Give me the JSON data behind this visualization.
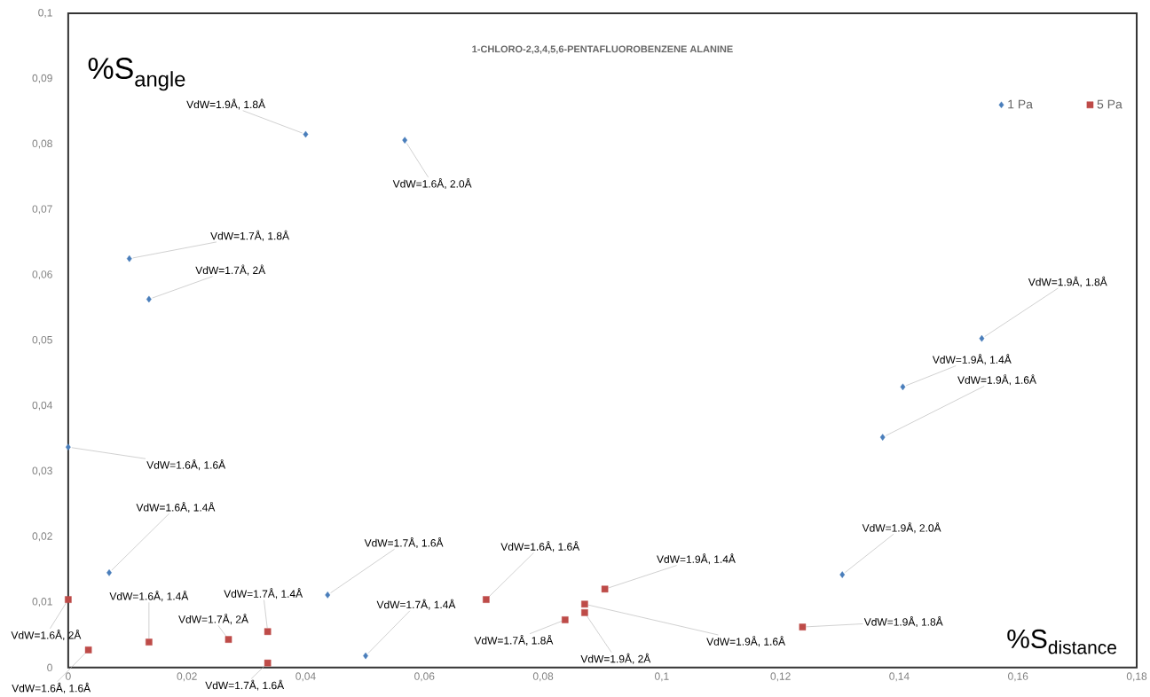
{
  "chart_data": {
    "type": "scatter",
    "title": "1-CHLORO-2,3,4,5,6-PENTAFLUOROBENZENE ALANINE",
    "xlabel": "%S$_{distance}$",
    "ylabel": "%S$_{angle}$",
    "xlim": [
      0,
      0.18
    ],
    "ylim": [
      0,
      0.1
    ],
    "xticks": [
      0,
      {
        "value": 0.02,
        "label": "0,02"
      },
      {
        "value": 0.04,
        "label": "0,04"
      },
      {
        "value": 0.06,
        "label": "0,06"
      },
      {
        "value": 0.08,
        "label": "0,08"
      },
      {
        "value": 0.1,
        "label": "0,1"
      },
      {
        "value": 0.12,
        "label": "0,12"
      },
      {
        "value": 0.14,
        "label": "0,14"
      },
      {
        "value": 0.16,
        "label": "0,16"
      },
      {
        "value": 0.18,
        "label": "0,18"
      }
    ],
    "yticks": [
      0,
      {
        "value": 0.01,
        "label": "0,01"
      },
      {
        "value": 0.02,
        "label": "0,02"
      },
      {
        "value": 0.03,
        "label": "0,03"
      },
      {
        "value": 0.04,
        "label": "0,04"
      },
      {
        "value": 0.05,
        "label": "0,05"
      },
      {
        "value": 0.06,
        "label": "0,06"
      },
      {
        "value": 0.07,
        "label": "0,07"
      },
      {
        "value": 0.08,
        "label": "0,08"
      },
      {
        "value": 0.09,
        "label": "0,09"
      },
      {
        "value": 0.1,
        "label": "0,1"
      }
    ],
    "legend": "top right",
    "series": [
      {
        "name": "1 Pa",
        "color": "#4a7ebb",
        "marker": "diamond",
        "x": [
          0.04,
          0.0567,
          0.0103,
          0.0136,
          0.0,
          0.0069,
          0.0437,
          0.0501,
          0.1304,
          0.1372,
          0.1406,
          0.1539
        ],
        "values": [
          0.0815,
          0.0806,
          0.0625,
          0.0563,
          0.0337,
          0.0145,
          0.0111,
          0.0018,
          0.0142,
          0.0352,
          0.0429,
          0.0503
        ]
      },
      {
        "name": "5 Pa",
        "color": "#be4b48",
        "marker": "square",
        "x": [
          0.0,
          0.0034,
          0.0136,
          0.027,
          0.0336,
          0.0336,
          0.0704,
          0.0837,
          0.087,
          0.087,
          0.0904,
          0.1237
        ],
        "values": [
          0.0104,
          0.0027,
          0.0039,
          0.0043,
          0.0055,
          0.0007,
          0.0104,
          0.0073,
          0.0097,
          0.0084,
          0.012,
          0.0062
        ]
      }
    ],
    "annotations": [
      {
        "text": "VdW=1.9Å, 1.8Å",
        "x": 0.04,
        "y": 0.0815
      },
      {
        "text": "VdW=1.6Å, 2.0Å",
        "x": 0.0567,
        "y": 0.0806
      },
      {
        "text": "VdW=1.7Å, 1.8Å",
        "x": 0.0103,
        "y": 0.0625
      },
      {
        "text": "VdW=1.7Å, 2Å",
        "x": 0.0136,
        "y": 0.0563
      },
      {
        "text": "VdW=1.6Å, 1.6Å",
        "x": 0.0,
        "y": 0.0337
      },
      {
        "text": "VdW=1.6Å, 1.4Å",
        "x": 0.0069,
        "y": 0.0145
      },
      {
        "text": "VdW=1.7Å, 1.6Å",
        "x": 0.0437,
        "y": 0.0111
      },
      {
        "text": "VdW=1.7Å, 1.4Å",
        "x": 0.0501,
        "y": 0.0018
      },
      {
        "text": "VdW=1.9Å, 2.0Å",
        "x": 0.1304,
        "y": 0.0142
      },
      {
        "text": "VdW=1.9Å, 1.6Å",
        "x": 0.1372,
        "y": 0.0352
      },
      {
        "text": "VdW=1.9Å, 1.4Å",
        "x": 0.1406,
        "y": 0.0429
      },
      {
        "text": "VdW=1.9Å, 1.8Å",
        "x": 0.1539,
        "y": 0.0503
      },
      {
        "text": "VdW=1.6Å, 2Å",
        "x": 0.0,
        "y": 0.0104
      },
      {
        "text": "VdW=1.6Å, 1.6Å",
        "x": 0.0034,
        "y": 0.0027
      },
      {
        "text": "VdW=1.6Å, 1.4Å",
        "x": 0.0136,
        "y": 0.0039
      },
      {
        "text": "VdW=1.7Å, 2Å",
        "x": 0.027,
        "y": 0.0043
      },
      {
        "text": "VdW=1.7Å, 1.4Å",
        "x": 0.0336,
        "y": 0.0055
      },
      {
        "text": "VdW=1.7Å, 1.6Å",
        "x": 0.0336,
        "y": 0.0007
      },
      {
        "text": "VdW=1.6Å, 1.6Å",
        "x": 0.0704,
        "y": 0.0104
      },
      {
        "text": "VdW=1.7Å, 1.8Å",
        "x": 0.0837,
        "y": 0.0073
      },
      {
        "text": "VdW=1.9Å, 1.6Å",
        "x": 0.087,
        "y": 0.0097
      },
      {
        "text": "VdW=1.9Å, 2Å",
        "x": 0.087,
        "y": 0.0084
      },
      {
        "text": "VdW=1.9Å, 1.4Å",
        "x": 0.0904,
        "y": 0.012
      },
      {
        "text": "VdW=1.9Å, 1.8Å",
        "x": 0.1237,
        "y": 0.0062
      }
    ]
  }
}
